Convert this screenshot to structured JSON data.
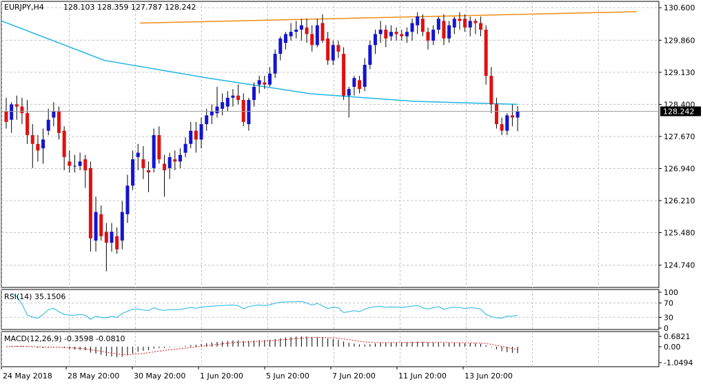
{
  "chart_data": [
    {
      "type": "candlestick",
      "title": "EURJPY,H4",
      "ohlc_text": "128.103 128.359 127.787 128.242",
      "last_price": "128.242",
      "y_ticks": [
        "130.600",
        "129.860",
        "129.130",
        "128.400",
        "127.670",
        "126.940",
        "126.210",
        "125.480",
        "124.740"
      ],
      "ylim": [
        124.5,
        130.65
      ],
      "x_ticks": [
        "24 May 2018",
        "28 May 20:00",
        "30 May 20:00",
        "1 Jun 20:00",
        "5 Jun 20:00",
        "7 Jun 20:00",
        "11 Jun 20:00",
        "13 Jun 20:00"
      ],
      "colors": {
        "bull": "#1414d0",
        "bear": "#e01010",
        "ma": "#1eb4e6",
        "trendline": "#f08c14",
        "wick": "#000000"
      },
      "candles": [
        [
          128.25,
          128.55,
          127.85,
          128.0
        ],
        [
          128.05,
          128.45,
          127.75,
          128.4
        ],
        [
          128.4,
          128.6,
          128.05,
          128.35
        ],
        [
          128.35,
          128.55,
          127.95,
          128.2
        ],
        [
          128.2,
          128.5,
          127.5,
          127.7
        ],
        [
          127.7,
          127.95,
          126.95,
          127.5
        ],
        [
          127.5,
          127.7,
          127.1,
          127.35
        ],
        [
          127.4,
          127.85,
          127.05,
          127.6
        ],
        [
          127.8,
          128.3,
          127.7,
          128.05
        ],
        [
          128.1,
          128.45,
          127.9,
          128.25
        ],
        [
          128.25,
          128.35,
          127.6,
          127.75
        ],
        [
          127.8,
          127.9,
          126.9,
          127.2
        ],
        [
          127.1,
          127.35,
          126.85,
          127.0
        ],
        [
          127.0,
          127.25,
          126.85,
          127.0
        ],
        [
          127.0,
          127.3,
          126.9,
          127.1
        ],
        [
          127.15,
          127.25,
          126.5,
          126.9
        ],
        [
          126.95,
          127.1,
          125.05,
          125.35
        ],
        [
          125.3,
          126.3,
          125.05,
          125.95
        ],
        [
          125.9,
          126.1,
          125.3,
          125.4
        ],
        [
          125.5,
          125.7,
          124.6,
          125.25
        ],
        [
          125.25,
          125.7,
          125.05,
          125.5
        ],
        [
          125.4,
          125.6,
          125.0,
          125.1
        ],
        [
          125.3,
          126.2,
          125.1,
          125.95
        ],
        [
          125.9,
          126.8,
          125.7,
          126.55
        ],
        [
          126.55,
          127.35,
          126.45,
          127.15
        ],
        [
          127.2,
          127.5,
          126.9,
          127.3
        ],
        [
          127.15,
          127.45,
          126.7,
          126.95
        ],
        [
          126.9,
          127.1,
          126.4,
          126.85
        ],
        [
          126.95,
          127.85,
          126.85,
          127.7
        ],
        [
          127.7,
          127.9,
          127.05,
          127.15
        ],
        [
          127.05,
          127.25,
          126.3,
          126.9
        ],
        [
          126.95,
          127.3,
          126.7,
          127.2
        ],
        [
          127.15,
          127.35,
          126.9,
          127.1
        ],
        [
          127.1,
          127.4,
          126.95,
          127.25
        ],
        [
          127.3,
          127.65,
          127.2,
          127.5
        ],
        [
          127.5,
          128.0,
          127.4,
          127.8
        ],
        [
          127.8,
          128.0,
          127.3,
          127.6
        ],
        [
          127.6,
          128.1,
          127.4,
          127.95
        ],
        [
          127.95,
          128.3,
          127.8,
          128.15
        ],
        [
          128.15,
          128.4,
          127.95,
          128.25
        ],
        [
          128.2,
          128.8,
          128.1,
          128.35
        ],
        [
          128.3,
          128.65,
          128.15,
          128.45
        ],
        [
          128.35,
          128.7,
          128.25,
          128.55
        ],
        [
          128.55,
          128.75,
          128.35,
          128.6
        ],
        [
          128.6,
          128.85,
          128.4,
          128.5
        ],
        [
          128.5,
          128.65,
          127.9,
          128.0
        ],
        [
          127.95,
          128.55,
          127.8,
          128.5
        ],
        [
          128.5,
          128.9,
          128.35,
          128.8
        ],
        [
          128.85,
          129.05,
          128.65,
          128.95
        ],
        [
          128.9,
          129.05,
          128.75,
          128.85
        ],
        [
          128.85,
          129.25,
          128.8,
          129.1
        ],
        [
          129.1,
          129.65,
          129.0,
          129.55
        ],
        [
          129.55,
          129.95,
          129.4,
          129.9
        ],
        [
          129.8,
          130.05,
          129.65,
          130.0
        ],
        [
          129.95,
          130.25,
          129.85,
          130.05
        ],
        [
          130.05,
          130.3,
          129.9,
          130.1
        ],
        [
          130.1,
          130.35,
          129.85,
          130.2
        ],
        [
          130.15,
          130.35,
          129.8,
          130.0
        ],
        [
          130.0,
          130.2,
          129.6,
          129.75
        ],
        [
          129.75,
          130.35,
          129.7,
          130.2
        ],
        [
          130.25,
          130.45,
          129.8,
          129.85
        ],
        [
          129.9,
          130.05,
          129.3,
          129.4
        ],
        [
          129.4,
          129.85,
          129.3,
          129.75
        ],
        [
          129.75,
          129.85,
          129.45,
          129.6
        ],
        [
          129.55,
          129.7,
          128.5,
          128.6
        ],
        [
          128.6,
          128.8,
          128.1,
          128.75
        ],
        [
          128.8,
          129.05,
          128.6,
          129.0
        ],
        [
          128.95,
          129.05,
          128.65,
          128.75
        ],
        [
          128.8,
          129.45,
          128.7,
          129.3
        ],
        [
          129.3,
          129.85,
          129.2,
          129.75
        ],
        [
          129.75,
          130.1,
          129.55,
          130.0
        ],
        [
          130.0,
          130.3,
          129.8,
          130.1
        ],
        [
          130.1,
          130.2,
          129.7,
          129.9
        ],
        [
          129.95,
          130.2,
          129.85,
          130.05
        ],
        [
          130.05,
          130.15,
          129.85,
          130.0
        ],
        [
          130.0,
          130.1,
          129.85,
          129.95
        ],
        [
          129.95,
          130.15,
          129.8,
          130.05
        ],
        [
          130.05,
          130.35,
          129.85,
          130.25
        ],
        [
          130.2,
          130.5,
          130.0,
          130.4
        ],
        [
          130.35,
          130.45,
          129.95,
          130.05
        ],
        [
          130.05,
          130.15,
          129.65,
          129.85
        ],
        [
          129.85,
          130.2,
          129.75,
          130.1
        ],
        [
          130.1,
          130.4,
          130.0,
          130.35
        ],
        [
          130.3,
          130.45,
          129.75,
          129.9
        ],
        [
          129.9,
          130.3,
          129.8,
          130.2
        ],
        [
          130.15,
          130.4,
          130.0,
          130.35
        ],
        [
          130.35,
          130.5,
          130.1,
          130.3
        ],
        [
          130.35,
          130.45,
          130.05,
          130.15
        ],
        [
          130.15,
          130.4,
          129.95,
          130.3
        ],
        [
          130.3,
          130.35,
          130.0,
          130.25
        ],
        [
          130.25,
          130.4,
          129.95,
          130.1
        ],
        [
          130.1,
          130.2,
          128.85,
          129.05
        ],
        [
          129.05,
          129.25,
          128.2,
          128.4
        ],
        [
          128.4,
          128.55,
          127.85,
          127.95
        ],
        [
          127.95,
          128.1,
          127.7,
          127.8
        ],
        [
          127.8,
          128.2,
          127.7,
          128.15
        ],
        [
          128.15,
          128.4,
          127.9,
          128.1
        ],
        [
          128.1,
          128.36,
          127.79,
          128.24
        ]
      ],
      "ma_values": [
        130.3,
        129.4,
        129.0,
        128.64,
        128.47,
        128.4
      ],
      "trend_values": [
        130.25,
        130.51
      ]
    },
    {
      "type": "line",
      "title": "RSI(14) 35.1506",
      "y_ticks": [
        "100",
        "70",
        "30",
        "0"
      ],
      "ylim": [
        0,
        100
      ],
      "levels": [
        70,
        30
      ],
      "color": "#1eb4e6"
    },
    {
      "type": "bar",
      "title": "MACD(12,26,9) -0.3598 -0.0810",
      "y_ticks": [
        "0.6821",
        "0.00",
        "-1.0494"
      ],
      "ylim": [
        -1.0494,
        0.6821
      ],
      "macd_color": "#000000",
      "signal_color": "#e01010"
    }
  ]
}
